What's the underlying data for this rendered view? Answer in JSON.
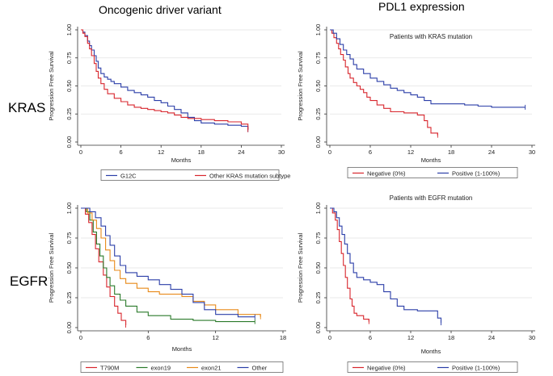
{
  "header": {
    "col1_title": "Oncogenic driver variant",
    "col2_title": "PDL1 expression",
    "row1_label": "KRAS",
    "row2_label": "EGFR"
  },
  "chart_data": [
    {
      "type": "line",
      "panel": "kras-driver",
      "title": "",
      "xlabel": "Months",
      "ylabel": "Progression Free Survival",
      "xlim": [
        0,
        30
      ],
      "ylim": [
        0,
        1
      ],
      "xticks": [
        0,
        6,
        12,
        18,
        24,
        30
      ],
      "yticks": [
        0,
        0.25,
        0.5,
        0.75,
        1.0
      ],
      "ytick_labels": [
        "0.00",
        "0.25",
        "0.50",
        "0.75",
        "1.00"
      ],
      "series": [
        {
          "name": "G12C",
          "color": "#2b3ea8",
          "points": [
            [
              0,
              1.0
            ],
            [
              0.3,
              0.98
            ],
            [
              0.6,
              0.95
            ],
            [
              1,
              0.9
            ],
            [
              1.3,
              0.86
            ],
            [
              1.6,
              0.82
            ],
            [
              2,
              0.77
            ],
            [
              2.3,
              0.72
            ],
            [
              2.6,
              0.66
            ],
            [
              3,
              0.61
            ],
            [
              3.5,
              0.58
            ],
            [
              4,
              0.56
            ],
            [
              4.5,
              0.54
            ],
            [
              5,
              0.52
            ],
            [
              6,
              0.49
            ],
            [
              7,
              0.46
            ],
            [
              8,
              0.44
            ],
            [
              9,
              0.42
            ],
            [
              10,
              0.4
            ],
            [
              11,
              0.37
            ],
            [
              12,
              0.35
            ],
            [
              13,
              0.32
            ],
            [
              14,
              0.29
            ],
            [
              15,
              0.26
            ],
            [
              16,
              0.22
            ],
            [
              17,
              0.19
            ],
            [
              18,
              0.17
            ],
            [
              20,
              0.16
            ],
            [
              22,
              0.15
            ],
            [
              24,
              0.14
            ],
            [
              25,
              0.11
            ]
          ]
        },
        {
          "name": "Other KRAS mutation subtype",
          "color": "#d8262d",
          "points": [
            [
              0,
              1.0
            ],
            [
              0.3,
              0.97
            ],
            [
              0.6,
              0.94
            ],
            [
              1,
              0.88
            ],
            [
              1.3,
              0.83
            ],
            [
              1.6,
              0.77
            ],
            [
              2,
              0.7
            ],
            [
              2.3,
              0.63
            ],
            [
              2.6,
              0.57
            ],
            [
              3,
              0.52
            ],
            [
              3.5,
              0.47
            ],
            [
              4,
              0.43
            ],
            [
              5,
              0.39
            ],
            [
              6,
              0.36
            ],
            [
              7,
              0.33
            ],
            [
              8,
              0.31
            ],
            [
              9,
              0.3
            ],
            [
              10,
              0.29
            ],
            [
              11,
              0.28
            ],
            [
              12,
              0.27
            ],
            [
              13,
              0.26
            ],
            [
              14,
              0.24
            ],
            [
              15,
              0.22
            ],
            [
              16,
              0.21
            ],
            [
              18,
              0.2
            ],
            [
              20,
              0.19
            ],
            [
              22,
              0.18
            ],
            [
              24,
              0.16
            ],
            [
              25,
              0.11
            ]
          ]
        }
      ]
    },
    {
      "type": "line",
      "panel": "kras-pdl1",
      "title": "Patients with KRAS mutation",
      "xlabel": "Months",
      "ylabel": "Progression Free Survival",
      "xlim": [
        0,
        30
      ],
      "ylim": [
        0,
        1
      ],
      "xticks": [
        0,
        6,
        12,
        18,
        24,
        30
      ],
      "yticks": [
        0,
        0.25,
        0.5,
        0.75,
        1.0
      ],
      "ytick_labels": [
        "0.00",
        "0.25",
        "0.50",
        "0.75",
        "1.00"
      ],
      "series": [
        {
          "name": "Negative (0%)",
          "color": "#d8262d",
          "points": [
            [
              0,
              1.0
            ],
            [
              0.3,
              0.97
            ],
            [
              0.6,
              0.93
            ],
            [
              1,
              0.88
            ],
            [
              1.3,
              0.83
            ],
            [
              1.6,
              0.78
            ],
            [
              2,
              0.73
            ],
            [
              2.3,
              0.67
            ],
            [
              2.7,
              0.61
            ],
            [
              3,
              0.57
            ],
            [
              3.5,
              0.53
            ],
            [
              4,
              0.5
            ],
            [
              4.5,
              0.47
            ],
            [
              5,
              0.44
            ],
            [
              5.5,
              0.4
            ],
            [
              6,
              0.37
            ],
            [
              7,
              0.33
            ],
            [
              8,
              0.3
            ],
            [
              9,
              0.27
            ],
            [
              11,
              0.26
            ],
            [
              13,
              0.24
            ],
            [
              14,
              0.19
            ],
            [
              14.5,
              0.13
            ],
            [
              15,
              0.08
            ],
            [
              16,
              0.06
            ]
          ]
        },
        {
          "name": "Positive (1-100%)",
          "color": "#2b3ea8",
          "points": [
            [
              0,
              1.0
            ],
            [
              0.5,
              0.97
            ],
            [
              1,
              0.92
            ],
            [
              1.5,
              0.87
            ],
            [
              2,
              0.82
            ],
            [
              2.5,
              0.78
            ],
            [
              3,
              0.74
            ],
            [
              3.5,
              0.69
            ],
            [
              4,
              0.65
            ],
            [
              5,
              0.61
            ],
            [
              6,
              0.57
            ],
            [
              7,
              0.54
            ],
            [
              8,
              0.51
            ],
            [
              9,
              0.48
            ],
            [
              10,
              0.46
            ],
            [
              11,
              0.44
            ],
            [
              12,
              0.42
            ],
            [
              13,
              0.4
            ],
            [
              14,
              0.37
            ],
            [
              15,
              0.34
            ],
            [
              16,
              0.34
            ],
            [
              18,
              0.34
            ],
            [
              20,
              0.33
            ],
            [
              22,
              0.32
            ],
            [
              24,
              0.31
            ],
            [
              26,
              0.31
            ],
            [
              29,
              0.31
            ]
          ]
        }
      ]
    },
    {
      "type": "line",
      "panel": "egfr-driver",
      "title": "",
      "xlabel": "Months",
      "ylabel": "Progression Free Survival",
      "xlim": [
        0,
        18
      ],
      "ylim": [
        0,
        1
      ],
      "xticks": [
        0,
        6,
        12,
        18
      ],
      "yticks": [
        0,
        0.25,
        0.5,
        0.75,
        1.0
      ],
      "ytick_labels": [
        "0.00",
        "0.25",
        "0.50",
        "0.75",
        "1.00"
      ],
      "series": [
        {
          "name": "T790M",
          "color": "#d8262d",
          "points": [
            [
              0,
              1.0
            ],
            [
              0.4,
              0.95
            ],
            [
              0.7,
              0.88
            ],
            [
              1,
              0.78
            ],
            [
              1.3,
              0.66
            ],
            [
              1.6,
              0.55
            ],
            [
              2,
              0.44
            ],
            [
              2.3,
              0.34
            ],
            [
              2.6,
              0.26
            ],
            [
              3,
              0.18
            ],
            [
              3.3,
              0.12
            ],
            [
              3.6,
              0.06
            ],
            [
              4,
              0.02
            ]
          ]
        },
        {
          "name": "exon19",
          "color": "#2a7a2a",
          "points": [
            [
              0,
              1.0
            ],
            [
              0.5,
              0.97
            ],
            [
              0.8,
              0.9
            ],
            [
              1.1,
              0.8
            ],
            [
              1.4,
              0.7
            ],
            [
              1.7,
              0.6
            ],
            [
              2,
              0.5
            ],
            [
              2.3,
              0.42
            ],
            [
              2.6,
              0.35
            ],
            [
              3,
              0.28
            ],
            [
              3.5,
              0.23
            ],
            [
              4,
              0.18
            ],
            [
              5,
              0.13
            ],
            [
              6,
              0.1
            ],
            [
              8,
              0.07
            ],
            [
              10,
              0.06
            ],
            [
              12,
              0.05
            ],
            [
              15.5,
              0.05
            ]
          ]
        },
        {
          "name": "exon21",
          "color": "#e88a1a",
          "points": [
            [
              0,
              1.0
            ],
            [
              0.6,
              0.96
            ],
            [
              1,
              0.9
            ],
            [
              1.4,
              0.83
            ],
            [
              1.8,
              0.75
            ],
            [
              2.2,
              0.65
            ],
            [
              2.6,
              0.56
            ],
            [
              3,
              0.48
            ],
            [
              3.5,
              0.41
            ],
            [
              4,
              0.37
            ],
            [
              5,
              0.33
            ],
            [
              6,
              0.3
            ],
            [
              7,
              0.28
            ],
            [
              8,
              0.28
            ],
            [
              9,
              0.26
            ],
            [
              10,
              0.22
            ],
            [
              11,
              0.19
            ],
            [
              12,
              0.15
            ],
            [
              14,
              0.11
            ],
            [
              16,
              0.09
            ]
          ]
        },
        {
          "name": "Other",
          "color": "#2b3ea8",
          "points": [
            [
              0,
              1.0
            ],
            [
              0.8,
              0.97
            ],
            [
              1.3,
              0.92
            ],
            [
              1.8,
              0.85
            ],
            [
              2.2,
              0.77
            ],
            [
              2.6,
              0.69
            ],
            [
              3,
              0.6
            ],
            [
              3.5,
              0.52
            ],
            [
              4,
              0.46
            ],
            [
              5,
              0.43
            ],
            [
              6,
              0.4
            ],
            [
              7,
              0.36
            ],
            [
              8,
              0.32
            ],
            [
              9,
              0.28
            ],
            [
              10,
              0.21
            ],
            [
              11,
              0.15
            ],
            [
              12,
              0.11
            ],
            [
              14,
              0.09
            ],
            [
              15.5,
              0.09
            ]
          ]
        }
      ]
    },
    {
      "type": "line",
      "panel": "egfr-pdl1",
      "title": "Patients with EGFR mutation",
      "xlabel": "Months",
      "ylabel": "Progression Free Survival",
      "xlim": [
        0,
        30
      ],
      "ylim": [
        0,
        1
      ],
      "xticks": [
        0,
        6,
        12,
        18,
        24,
        30
      ],
      "yticks": [
        0,
        0.25,
        0.5,
        0.75,
        1.0
      ],
      "ytick_labels": [
        "0.00",
        "0.25",
        "0.50",
        "0.75",
        "1.00"
      ],
      "series": [
        {
          "name": "Negative (0%)",
          "color": "#d8262d",
          "points": [
            [
              0,
              1.0
            ],
            [
              0.4,
              0.96
            ],
            [
              0.8,
              0.9
            ],
            [
              1.1,
              0.82
            ],
            [
              1.4,
              0.72
            ],
            [
              1.7,
              0.62
            ],
            [
              2,
              0.52
            ],
            [
              2.3,
              0.42
            ],
            [
              2.6,
              0.33
            ],
            [
              3,
              0.24
            ],
            [
              3.3,
              0.18
            ],
            [
              3.6,
              0.12
            ],
            [
              4,
              0.1
            ],
            [
              5,
              0.07
            ],
            [
              5.8,
              0.05
            ]
          ]
        },
        {
          "name": "Positive (1-100%)",
          "color": "#2b3ea8",
          "points": [
            [
              0,
              1.0
            ],
            [
              0.6,
              0.97
            ],
            [
              1,
              0.92
            ],
            [
              1.4,
              0.85
            ],
            [
              1.8,
              0.78
            ],
            [
              2.2,
              0.7
            ],
            [
              2.6,
              0.62
            ],
            [
              3,
              0.54
            ],
            [
              3.5,
              0.46
            ],
            [
              4,
              0.42
            ],
            [
              5,
              0.4
            ],
            [
              6,
              0.38
            ],
            [
              7,
              0.36
            ],
            [
              8,
              0.3
            ],
            [
              9,
              0.24
            ],
            [
              10,
              0.18
            ],
            [
              11,
              0.15
            ],
            [
              13,
              0.14
            ],
            [
              15,
              0.14
            ],
            [
              16,
              0.08
            ],
            [
              16.5,
              0.04
            ]
          ]
        }
      ]
    }
  ]
}
